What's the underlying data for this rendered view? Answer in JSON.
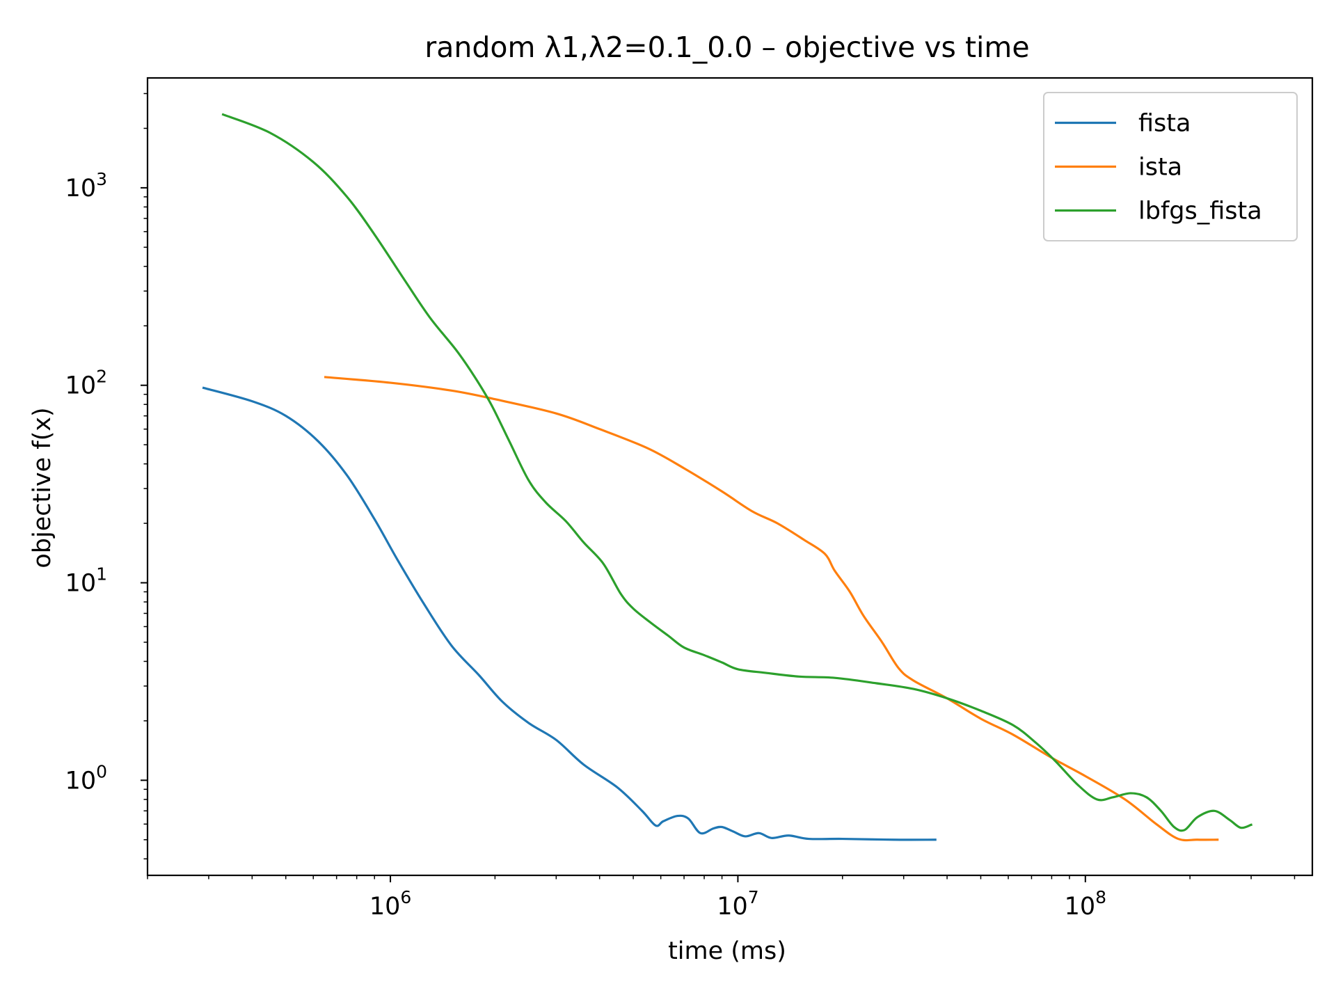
{
  "chart_data": {
    "type": "line",
    "title": "random   λ1,λ2=0.1_0.0  –  objective vs time",
    "xlabel": "time (ms)",
    "ylabel": "objective f(x)",
    "x_scale": "log",
    "y_scale": "log",
    "xlim": [
      200000,
      450000000
    ],
    "ylim": [
      0.33,
      3600
    ],
    "x_ticks": [
      {
        "value": 1000000,
        "base": "10",
        "exp": "6"
      },
      {
        "value": 10000000,
        "base": "10",
        "exp": "7"
      },
      {
        "value": 100000000,
        "base": "10",
        "exp": "8"
      }
    ],
    "y_ticks": [
      {
        "value": 1,
        "base": "10",
        "exp": "0"
      },
      {
        "value": 10,
        "base": "10",
        "exp": "1"
      },
      {
        "value": 100,
        "base": "10",
        "exp": "2"
      },
      {
        "value": 1000,
        "base": "10",
        "exp": "3"
      }
    ],
    "grid": false,
    "legend_position": "top-right",
    "series": [
      {
        "name": "fista",
        "color": "#1f77b4",
        "points": [
          [
            290000,
            97
          ],
          [
            400000,
            83
          ],
          [
            500000,
            70
          ],
          [
            620000,
            52
          ],
          [
            750000,
            35
          ],
          [
            900000,
            21
          ],
          [
            1050000,
            13
          ],
          [
            1250000,
            7.8
          ],
          [
            1500000,
            4.8
          ],
          [
            1800000,
            3.4
          ],
          [
            2100000,
            2.5
          ],
          [
            2500000,
            1.95
          ],
          [
            3000000,
            1.6
          ],
          [
            3600000,
            1.2
          ],
          [
            4500000,
            0.92
          ],
          [
            5300000,
            0.7
          ],
          [
            5800000,
            0.59
          ],
          [
            6100000,
            0.62
          ],
          [
            6700000,
            0.66
          ],
          [
            7200000,
            0.64
          ],
          [
            7800000,
            0.54
          ],
          [
            8500000,
            0.57
          ],
          [
            9000000,
            0.58
          ],
          [
            9700000,
            0.55
          ],
          [
            10500000,
            0.52
          ],
          [
            11500000,
            0.54
          ],
          [
            12500000,
            0.51
          ],
          [
            14000000,
            0.525
          ],
          [
            16000000,
            0.505
          ],
          [
            20000000,
            0.505
          ],
          [
            28000000,
            0.5
          ],
          [
            37000000,
            0.5
          ]
        ]
      },
      {
        "name": "ista",
        "color": "#ff7f0e",
        "points": [
          [
            650000,
            110
          ],
          [
            1000000,
            103
          ],
          [
            1500000,
            94
          ],
          [
            2000000,
            85
          ],
          [
            3000000,
            72
          ],
          [
            4000000,
            60
          ],
          [
            5500000,
            48
          ],
          [
            7000000,
            38
          ],
          [
            9000000,
            29
          ],
          [
            11000000,
            23
          ],
          [
            13000000,
            20
          ],
          [
            15500000,
            16.5
          ],
          [
            17800000,
            14
          ],
          [
            19000000,
            11.5
          ],
          [
            21000000,
            9
          ],
          [
            23000000,
            6.8
          ],
          [
            26000000,
            5
          ],
          [
            29000000,
            3.7
          ],
          [
            32000000,
            3.2
          ],
          [
            40000000,
            2.6
          ],
          [
            50000000,
            2.05
          ],
          [
            62000000,
            1.7
          ],
          [
            80000000,
            1.3
          ],
          [
            100000000,
            1.05
          ],
          [
            130000000,
            0.8
          ],
          [
            160000000,
            0.6
          ],
          [
            185000000,
            0.505
          ],
          [
            210000000,
            0.5
          ],
          [
            240000000,
            0.5
          ]
        ]
      },
      {
        "name": "lbfgs_fista",
        "color": "#2ca02c",
        "points": [
          [
            330000,
            2350
          ],
          [
            450000,
            1900
          ],
          [
            600000,
            1350
          ],
          [
            750000,
            900
          ],
          [
            900000,
            580
          ],
          [
            1100000,
            340
          ],
          [
            1300000,
            220
          ],
          [
            1550000,
            150
          ],
          [
            1750000,
            110
          ],
          [
            1950000,
            80
          ],
          [
            2200000,
            52
          ],
          [
            2500000,
            33
          ],
          [
            2800000,
            25.5
          ],
          [
            3200000,
            20.5
          ],
          [
            3600000,
            16
          ],
          [
            4100000,
            12.5
          ],
          [
            4600000,
            8.8
          ],
          [
            5000000,
            7.4
          ],
          [
            5600000,
            6.3
          ],
          [
            6300000,
            5.4
          ],
          [
            7000000,
            4.7
          ],
          [
            8000000,
            4.3
          ],
          [
            9000000,
            3.95
          ],
          [
            10000000,
            3.65
          ],
          [
            12000000,
            3.5
          ],
          [
            15000000,
            3.35
          ],
          [
            19000000,
            3.3
          ],
          [
            25000000,
            3.1
          ],
          [
            32000000,
            2.9
          ],
          [
            40000000,
            2.6
          ],
          [
            50000000,
            2.25
          ],
          [
            62000000,
            1.9
          ],
          [
            72000000,
            1.55
          ],
          [
            82000000,
            1.25
          ],
          [
            95000000,
            0.95
          ],
          [
            108000000,
            0.8
          ],
          [
            120000000,
            0.82
          ],
          [
            135000000,
            0.86
          ],
          [
            150000000,
            0.82
          ],
          [
            165000000,
            0.7
          ],
          [
            180000000,
            0.58
          ],
          [
            193000000,
            0.56
          ],
          [
            210000000,
            0.65
          ],
          [
            235000000,
            0.7
          ],
          [
            260000000,
            0.63
          ],
          [
            280000000,
            0.575
          ],
          [
            300000000,
            0.595
          ]
        ]
      }
    ]
  }
}
